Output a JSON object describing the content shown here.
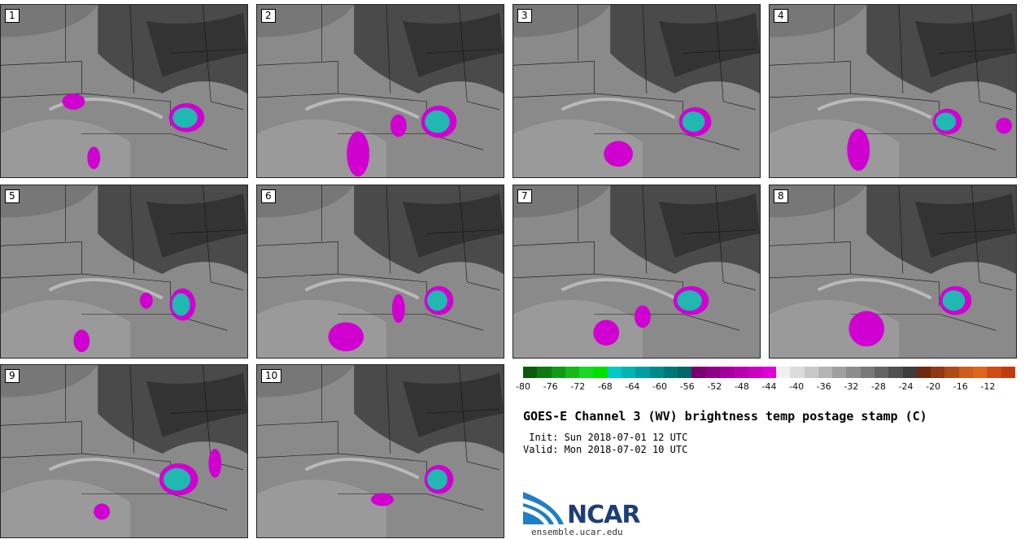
{
  "panels": [
    {
      "label": "1"
    },
    {
      "label": "2"
    },
    {
      "label": "3"
    },
    {
      "label": "4"
    },
    {
      "label": "5"
    },
    {
      "label": "6"
    },
    {
      "label": "7"
    },
    {
      "label": "8"
    },
    {
      "label": "9"
    },
    {
      "label": "10"
    }
  ],
  "colorbar": {
    "colors": [
      "#0a5a0a",
      "#0e7a10",
      "#129a16",
      "#16b81c",
      "#1ad824",
      "#00e000",
      "#00c8c8",
      "#00b4b4",
      "#009ea0",
      "#008a8c",
      "#007678",
      "#00666a",
      "#7a0070",
      "#8e0086",
      "#a2009a",
      "#b600ae",
      "#ca00c2",
      "#de00d6",
      "#f0f0f0",
      "#dcdcdc",
      "#c8c8c8",
      "#b4b4b4",
      "#a0a0a0",
      "#8c8c8c",
      "#787878",
      "#646464",
      "#505050",
      "#3c3c3c",
      "#6e2a10",
      "#8e3814",
      "#ae4a18",
      "#ce5c1c",
      "#e0661e",
      "#d24a14",
      "#c43a10"
    ],
    "ticks": [
      "-80",
      "-76",
      "-72",
      "-68",
      "-64",
      "-60",
      "-56",
      "-52",
      "-48",
      "-44",
      "-40",
      "-36",
      "-32",
      "-28",
      "-24",
      "-20",
      "-16",
      "-12"
    ]
  },
  "title": "GOES-E Channel 3 (WV) brightness temp postage stamp (C)",
  "init": " Init: Sun 2018-07-01 12 UTC",
  "valid": "Valid: Mon 2018-07-02 10 UTC",
  "logo": {
    "word": "NCAR",
    "url": "ensemble.ucar.edu"
  }
}
